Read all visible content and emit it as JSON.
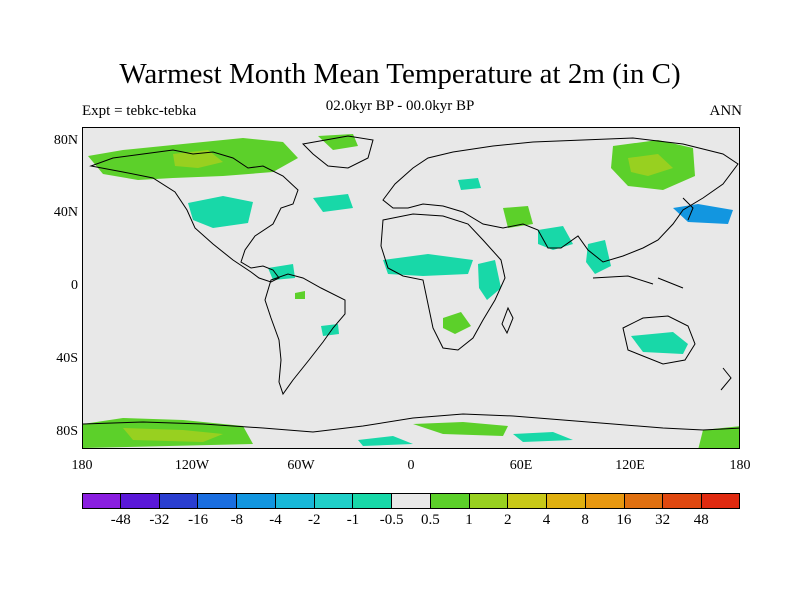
{
  "title": "Warmest Month Mean Temperature at 2m (in C)",
  "left_label": "Expt = tebkc-tebka",
  "center_label": "02.0kyr BP - 00.0kyr BP",
  "right_label": "ANN",
  "lat_labels": [
    "80N",
    "40N",
    "0",
    "40S",
    "80S"
  ],
  "lon_labels": [
    "180",
    "120W",
    "60W",
    "0",
    "60E",
    "120E",
    "180"
  ],
  "colorbar": {
    "colors": [
      "#8a1ee0",
      "#5a18d8",
      "#2a3ed0",
      "#1a6ee0",
      "#1296e0",
      "#18b8d8",
      "#20cfc8",
      "#18d8a8",
      "#e8e8e8",
      "#5cd02a",
      "#98d020",
      "#c8c818",
      "#e0b010",
      "#e89810",
      "#e07010",
      "#e04810",
      "#e02a10"
    ],
    "labels": [
      "-48",
      "-32",
      "-16",
      "-8",
      "-4",
      "-2",
      "-1",
      "-0.5",
      "0.5",
      "1",
      "2",
      "4",
      "8",
      "16",
      "32",
      "48"
    ]
  },
  "colors": {
    "background_field": "#e8e8e8",
    "green": "#5cd02a",
    "light_green": "#98d020",
    "yellow_green": "#c8c818",
    "teal": "#18d8a8",
    "cyan": "#20cfc8",
    "blue": "#18b8d8"
  }
}
